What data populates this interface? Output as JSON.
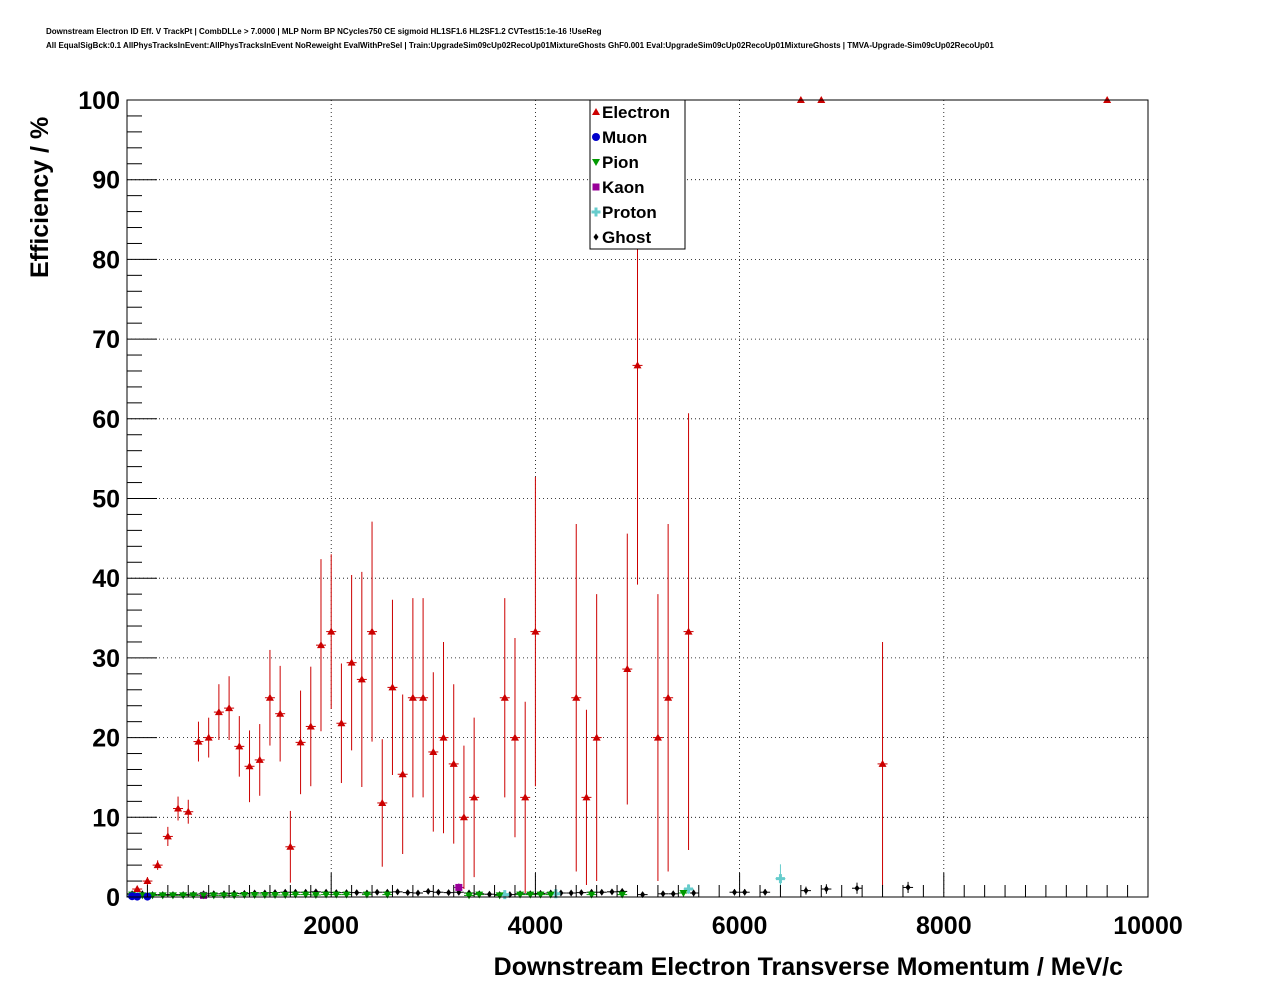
{
  "title": {
    "line1": "Downstream Electron ID Eff. V TrackPt | CombDLLe > 7.0000 | MLP Norm BP NCycles750 CE sigmoid HL1SF1.6 HL2SF1.2 CVTest15:1e-16 !UseReg",
    "line2": "All EqualSigBck:0.1 AllPhysTracksInEvent:AllPhysTracksInEvent NoReweight EvalWithPreSel | Train:UpgradeSim09cUp02RecoUp01MixtureGhosts GhF0.001 Eval:UpgradeSim09cUp02RecoUp01MixtureGhosts | TMVA-Upgrade-Sim09cUp02RecoUp01"
  },
  "chart_data": {
    "type": "scatter",
    "xlabel": "Downstream Electron Transverse Momentum / MeV/c",
    "ylabel": "Efficiency / %",
    "xlim": [
      0,
      10000
    ],
    "ylim": [
      0,
      100
    ],
    "xticks": [
      2000,
      4000,
      6000,
      8000,
      10000
    ],
    "yticks": [
      0,
      10,
      20,
      30,
      40,
      50,
      60,
      70,
      80,
      90,
      100
    ],
    "grid": true,
    "legend_position": "top-center",
    "series": [
      {
        "name": "Electron",
        "color": "#cc0000",
        "marker": "triangle-up",
        "points": [
          [
            100,
            1.0,
            0.4
          ],
          [
            200,
            2.0,
            0.5
          ],
          [
            300,
            4.0,
            0.6
          ],
          [
            400,
            7.6,
            1.2
          ],
          [
            500,
            11.1,
            1.5
          ],
          [
            600,
            10.7,
            1.5
          ],
          [
            700,
            19.5,
            2.5
          ],
          [
            800,
            20.0,
            2.5
          ],
          [
            900,
            23.2,
            3.5
          ],
          [
            1000,
            23.7,
            4.0
          ],
          [
            1100,
            18.9,
            3.8
          ],
          [
            1200,
            16.4,
            4.5
          ],
          [
            1300,
            17.2,
            4.5
          ],
          [
            1400,
            25.0,
            6.0
          ],
          [
            1500,
            23.0,
            6.0
          ],
          [
            1600,
            6.3,
            4.5
          ],
          [
            1700,
            19.4,
            6.5
          ],
          [
            1800,
            21.4,
            7.5
          ],
          [
            1900,
            31.6,
            10.8
          ],
          [
            2000,
            33.3,
            9.7
          ],
          [
            2100,
            21.8,
            7.5
          ],
          [
            2200,
            29.4,
            11.0
          ],
          [
            2300,
            27.3,
            13.5
          ],
          [
            2400,
            33.3,
            13.8
          ],
          [
            2500,
            11.8,
            8.0
          ],
          [
            2600,
            26.3,
            11.0
          ],
          [
            2700,
            15.4,
            10.0
          ],
          [
            2800,
            25.0,
            12.5
          ],
          [
            2900,
            25.0,
            12.5
          ],
          [
            3000,
            18.2,
            10.0
          ],
          [
            3100,
            20.0,
            12.0
          ],
          [
            3200,
            16.7,
            10.0
          ],
          [
            3300,
            10.0,
            9.0
          ],
          [
            3400,
            12.5,
            10.0
          ],
          [
            3700,
            25.0,
            12.5
          ],
          [
            3800,
            20.0,
            12.5
          ],
          [
            3900,
            12.5,
            12.0
          ],
          [
            4000,
            33.3,
            19.4
          ],
          [
            4400,
            25.0,
            21.8
          ],
          [
            4500,
            12.5,
            11.0
          ],
          [
            4600,
            20.0,
            18.0
          ],
          [
            4900,
            28.6,
            17.0
          ],
          [
            5000,
            66.7,
            27.5
          ],
          [
            5200,
            20.0,
            18.0
          ],
          [
            5300,
            25.0,
            21.8
          ],
          [
            5500,
            33.3,
            27.4
          ],
          [
            6600,
            100,
            0
          ],
          [
            6800,
            100,
            0
          ],
          [
            7400,
            16.7,
            15.3
          ],
          [
            9600,
            100,
            0
          ]
        ]
      },
      {
        "name": "Muon",
        "color": "#0000cc",
        "marker": "circle",
        "points": [
          [
            50,
            0.1,
            0.1
          ],
          [
            100,
            0.05,
            0.05
          ],
          [
            200,
            0.05,
            0.05
          ]
        ]
      },
      {
        "name": "Pion",
        "color": "#009900",
        "marker": "triangle-down",
        "points": [
          [
            50,
            0.3,
            0.1
          ],
          [
            150,
            0.2,
            0.1
          ],
          [
            250,
            0.2,
            0.1
          ],
          [
            350,
            0.2,
            0.1
          ],
          [
            450,
            0.2,
            0.1
          ],
          [
            550,
            0.2,
            0.1
          ],
          [
            650,
            0.2,
            0.1
          ],
          [
            750,
            0.2,
            0.1
          ],
          [
            850,
            0.2,
            0.1
          ],
          [
            950,
            0.2,
            0.1
          ],
          [
            1050,
            0.2,
            0.1
          ],
          [
            1150,
            0.25,
            0.1
          ],
          [
            1250,
            0.25,
            0.1
          ],
          [
            1350,
            0.25,
            0.1
          ],
          [
            1450,
            0.25,
            0.1
          ],
          [
            1550,
            0.25,
            0.1
          ],
          [
            1650,
            0.3,
            0.15
          ],
          [
            1750,
            0.3,
            0.15
          ],
          [
            1850,
            0.25,
            0.15
          ],
          [
            1950,
            0.3,
            0.15
          ],
          [
            2050,
            0.3,
            0.15
          ],
          [
            2150,
            0.3,
            0.15
          ],
          [
            2350,
            0.3,
            0.15
          ],
          [
            2550,
            0.3,
            0.15
          ],
          [
            3350,
            0.2,
            0.15
          ],
          [
            3450,
            0.3,
            0.2
          ],
          [
            3650,
            0.2,
            0.2
          ],
          [
            3850,
            0.3,
            0.2
          ],
          [
            3950,
            0.3,
            0.2
          ],
          [
            4050,
            0.3,
            0.2
          ],
          [
            4150,
            0.3,
            0.2
          ],
          [
            4550,
            0.3,
            0.2
          ],
          [
            4850,
            0.3,
            0.3
          ],
          [
            5450,
            0.5,
            0.3
          ]
        ]
      },
      {
        "name": "Kaon",
        "color": "#990099",
        "marker": "square",
        "points": [
          [
            750,
            0.2,
            0.1
          ],
          [
            3250,
            1.2,
            0.5
          ]
        ]
      },
      {
        "name": "Proton",
        "color": "#66cccc",
        "marker": "cross",
        "points": [
          [
            5500,
            1.0,
            0.6
          ],
          [
            6400,
            2.3,
            1.8
          ],
          [
            4200,
            0.4,
            0.3
          ],
          [
            3700,
            0.3,
            0.2
          ]
        ]
      },
      {
        "name": "Ghost",
        "color": "#000000",
        "marker": "diamond",
        "points": [
          [
            50,
            0.4,
            0.1
          ],
          [
            150,
            0.4,
            0.1
          ],
          [
            250,
            0.3,
            0.1
          ],
          [
            350,
            0.3,
            0.1
          ],
          [
            450,
            0.3,
            0.1
          ],
          [
            550,
            0.3,
            0.1
          ],
          [
            650,
            0.35,
            0.1
          ],
          [
            750,
            0.4,
            0.1
          ],
          [
            850,
            0.4,
            0.1
          ],
          [
            950,
            0.4,
            0.1
          ],
          [
            1050,
            0.45,
            0.1
          ],
          [
            1150,
            0.45,
            0.1
          ],
          [
            1250,
            0.5,
            0.1
          ],
          [
            1350,
            0.5,
            0.15
          ],
          [
            1450,
            0.55,
            0.15
          ],
          [
            1550,
            0.6,
            0.15
          ],
          [
            1650,
            0.6,
            0.15
          ],
          [
            1750,
            0.6,
            0.15
          ],
          [
            1850,
            0.65,
            0.15
          ],
          [
            1950,
            0.6,
            0.15
          ],
          [
            2050,
            0.55,
            0.15
          ],
          [
            2150,
            0.55,
            0.15
          ],
          [
            2250,
            0.55,
            0.15
          ],
          [
            2350,
            0.5,
            0.15
          ],
          [
            2450,
            0.6,
            0.2
          ],
          [
            2550,
            0.6,
            0.2
          ],
          [
            2650,
            0.65,
            0.2
          ],
          [
            2750,
            0.55,
            0.2
          ],
          [
            2850,
            0.5,
            0.2
          ],
          [
            2950,
            0.7,
            0.2
          ],
          [
            3050,
            0.6,
            0.2
          ],
          [
            3150,
            0.55,
            0.2
          ],
          [
            3250,
            0.6,
            0.2
          ],
          [
            3350,
            0.5,
            0.2
          ],
          [
            3450,
            0.4,
            0.2
          ],
          [
            3550,
            0.35,
            0.2
          ],
          [
            3650,
            0.3,
            0.2
          ],
          [
            3750,
            0.3,
            0.2
          ],
          [
            3850,
            0.4,
            0.2
          ],
          [
            3950,
            0.4,
            0.25
          ],
          [
            4050,
            0.45,
            0.25
          ],
          [
            4150,
            0.5,
            0.25
          ],
          [
            4250,
            0.5,
            0.25
          ],
          [
            4350,
            0.5,
            0.25
          ],
          [
            4450,
            0.55,
            0.3
          ],
          [
            4550,
            0.6,
            0.3
          ],
          [
            4650,
            0.6,
            0.3
          ],
          [
            4750,
            0.65,
            0.3
          ],
          [
            4850,
            0.7,
            0.3
          ],
          [
            5050,
            0.3,
            0.3
          ],
          [
            5250,
            0.4,
            0.3
          ],
          [
            5350,
            0.4,
            0.3
          ],
          [
            5550,
            0.5,
            0.4
          ],
          [
            5950,
            0.6,
            0.4
          ],
          [
            6050,
            0.6,
            0.4
          ],
          [
            6250,
            0.6,
            0.4
          ],
          [
            6650,
            0.8,
            0.5
          ],
          [
            6850,
            1.0,
            0.6
          ],
          [
            7150,
            1.1,
            0.7
          ],
          [
            7650,
            1.2,
            0.7
          ]
        ]
      }
    ]
  }
}
